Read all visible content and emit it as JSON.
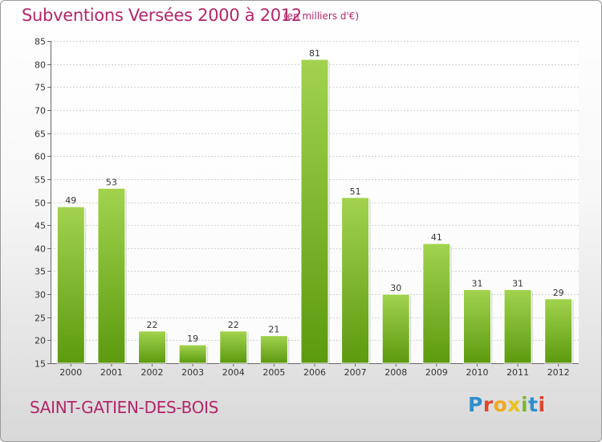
{
  "header": {
    "title": "Subventions Versées 2000 à 2012",
    "subtitle": "(en milliers d'€)"
  },
  "footer": {
    "commune": "SAINT-GATIEN-DES-BOIS",
    "logo_text": "Proxiti"
  },
  "colors": {
    "accent": "#b3266b",
    "bar_light": "#9fd24a",
    "bar_dark": "#5f9e10"
  },
  "chart_data": {
    "type": "bar",
    "title": "Subventions Versées 2000 à 2012",
    "subtitle": "(en milliers d'€)",
    "xlabel": "",
    "ylabel": "",
    "categories": [
      "2000",
      "2001",
      "2002",
      "2003",
      "2004",
      "2005",
      "2006",
      "2007",
      "2008",
      "2009",
      "2010",
      "2011",
      "2012"
    ],
    "values": [
      49,
      53,
      22,
      19,
      22,
      21,
      81,
      51,
      30,
      41,
      31,
      31,
      29
    ],
    "ylim": [
      15,
      85
    ],
    "yticks": [
      15,
      20,
      25,
      30,
      35,
      40,
      45,
      50,
      55,
      60,
      65,
      70,
      75,
      80,
      85
    ],
    "grid": true,
    "legend": "none"
  }
}
